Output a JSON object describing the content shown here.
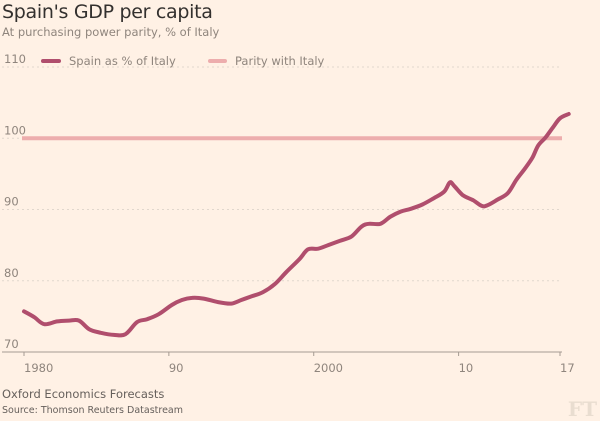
{
  "header": {
    "title": "Spain's GDP per capita",
    "subtitle": "At purchasing power parity, % of Italy"
  },
  "footer": {
    "note": "Oxford Economics Forecasts",
    "source": "Source: Thomson Reuters Datastream",
    "logo": "FT"
  },
  "colors": {
    "background": "#fff1e5",
    "spain": "#b04e6d",
    "parity": "#edadad",
    "grid": "#e1d7cd",
    "axis": "#a59b92",
    "text": "#8f857d"
  },
  "chart_data": {
    "type": "line",
    "title": "Spain's GDP per capita",
    "subtitle": "At purchasing power parity, % of Italy",
    "xlabel": "",
    "ylabel": "",
    "xlim": [
      1980,
      2017
    ],
    "ylim": [
      70,
      110
    ],
    "grid": true,
    "legend_position": "top-left",
    "x_ticks": [
      1980,
      1990,
      2000,
      2010,
      2017
    ],
    "x_tick_labels": [
      "1980",
      "90",
      "2000",
      "10",
      "17"
    ],
    "y_ticks": [
      70,
      80,
      90,
      100,
      110
    ],
    "y_tick_labels": [
      "70",
      "80",
      "90",
      "100",
      "110"
    ],
    "series": [
      {
        "name": "Spain as % of Italy",
        "x": [
          1980,
          1980.7,
          1981.4,
          1982.3,
          1983.1,
          1983.8,
          1984.5,
          1985.3,
          1986.2,
          1987.0,
          1987.8,
          1988.5,
          1989.3,
          1990.2,
          1990.9,
          1991.6,
          1992.4,
          1993.4,
          1994.3,
          1995.0,
          1995.7,
          1996.5,
          1997.3,
          1998.1,
          1999.0,
          1999.6,
          2000.3,
          2001.0,
          2001.8,
          2002.6,
          2003.3,
          2003.8,
          2004.6,
          2005.3,
          2006.0,
          2006.7,
          2007.5,
          2008.3,
          2009.0,
          2009.4,
          2009.7,
          2010.3,
          2011.0,
          2011.6,
          2012.0,
          2012.7,
          2013.4,
          2014.0,
          2014.6,
          2015.1,
          2015.5,
          2016.0,
          2016.5,
          2017.0,
          2017.6
        ],
        "values": [
          75.7,
          74.9,
          73.9,
          74.3,
          74.4,
          74.4,
          73.2,
          72.7,
          72.4,
          72.5,
          74.2,
          74.6,
          75.3,
          76.6,
          77.3,
          77.6,
          77.5,
          77.0,
          76.8,
          77.3,
          77.8,
          78.4,
          79.5,
          81.2,
          83.0,
          84.4,
          84.5,
          85.0,
          85.6,
          86.2,
          87.6,
          88.0,
          88.0,
          89.0,
          89.7,
          90.1,
          90.7,
          91.6,
          92.5,
          93.8,
          93.3,
          92.0,
          91.3,
          90.5,
          90.6,
          91.4,
          92.3,
          94.2,
          95.8,
          97.3,
          99.0,
          100.1,
          101.5,
          102.8,
          103.4
        ]
      },
      {
        "name": "Parity with Italy",
        "x": [
          1980,
          2017
        ],
        "values": [
          100,
          100
        ]
      }
    ]
  }
}
